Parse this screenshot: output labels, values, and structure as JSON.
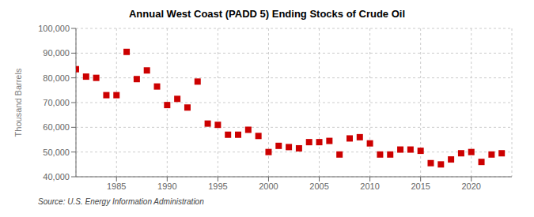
{
  "chart_data": {
    "type": "scatter",
    "title": "Annual West Coast (PADD 5) Ending Stocks of Crude Oil",
    "ylabel": "Thousand Barrels",
    "annotation": "Source: U.S. Energy Information Administration",
    "color": "#cc0000",
    "marker": "square",
    "grid": true,
    "xlim": [
      1981,
      2024
    ],
    "ylim": [
      40000,
      100000
    ],
    "xticks": [
      1985,
      1990,
      1995,
      2000,
      2005,
      2010,
      2015,
      2020
    ],
    "yticks": [
      {
        "value": 40000,
        "label": "40,000"
      },
      {
        "value": 50000,
        "label": "50,000"
      },
      {
        "value": 60000,
        "label": "60,000"
      },
      {
        "value": 70000,
        "label": "70,000"
      },
      {
        "value": 80000,
        "label": "80,000"
      },
      {
        "value": 90000,
        "label": "90,000"
      },
      {
        "value": 100000,
        "label": "100,000"
      }
    ],
    "x": [
      1981,
      1982,
      1983,
      1984,
      1985,
      1986,
      1987,
      1988,
      1989,
      1990,
      1991,
      1992,
      1993,
      1994,
      1995,
      1996,
      1997,
      1998,
      1999,
      2000,
      2001,
      2002,
      2003,
      2004,
      2005,
      2006,
      2007,
      2008,
      2009,
      2010,
      2011,
      2012,
      2013,
      2014,
      2015,
      2016,
      2017,
      2018,
      2019,
      2020,
      2021,
      2022,
      2023
    ],
    "values": [
      83500,
      80500,
      80000,
      73000,
      73000,
      90500,
      79500,
      83000,
      76500,
      69000,
      71500,
      68000,
      78500,
      61500,
      61000,
      57000,
      57000,
      59000,
      56500,
      50000,
      52500,
      52000,
      51500,
      54000,
      54000,
      54500,
      49000,
      55500,
      56000,
      53500,
      49000,
      49000,
      51000,
      51000,
      50500,
      45500,
      45000,
      47000,
      49500,
      50000,
      46000,
      49000,
      49500
    ]
  }
}
